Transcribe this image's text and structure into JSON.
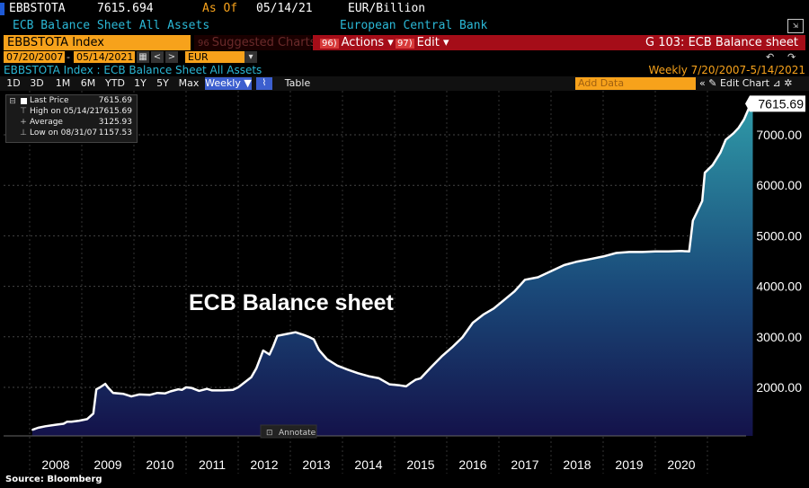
{
  "header": {
    "ticker": "EBBSTOTA",
    "last_value": "7615.694",
    "as_of_label": "As Of",
    "as_of_date": "05/14/21",
    "unit": "EUR/Billion",
    "description": "ECB Balance Sheet All Assets",
    "source_name": "European Central Bank",
    "popout_icon": "popout-icon"
  },
  "toolbar": {
    "security": "EBBSTOTA Index",
    "suggested_charts": "Suggested Charts",
    "suggested_num": "96",
    "actions_num": "96)",
    "actions": "Actions",
    "edit_num": "97)",
    "edit": "Edit",
    "page_title": "G 103: ECB Balance sheet"
  },
  "range": {
    "start": "07/20/2007",
    "end": "05/14/2021",
    "currency": "EUR"
  },
  "subtitle": {
    "left": "EBBSTOTA Index : ECB Balance Sheet All Assets",
    "right": "Weekly  7/20/2007-5/14/2021"
  },
  "periods": [
    "1D",
    "3D",
    "1M",
    "6M",
    "YTD",
    "1Y",
    "5Y",
    "Max"
  ],
  "frequency": "Weekly",
  "table_label": "Table",
  "add_data_placeholder": "Add Data",
  "edit_chart": "Edit Chart",
  "legend": {
    "last_price_label": "Last Price",
    "last_price_value": "7615.69",
    "high_label": "High on 05/14/21",
    "high_value": "7615.69",
    "average_label": "Average",
    "average_value": "3125.93",
    "low_label": "Low on 08/31/07",
    "low_value": "1157.53"
  },
  "annotate_label": "Annotate",
  "source": "Source: Bloomberg",
  "chart_data": {
    "type": "area",
    "title": "ECB Balance sheet",
    "ylim": [
      1100,
      7800
    ],
    "y_ticks": [
      2000,
      3000,
      4000,
      5000,
      6000,
      7000
    ],
    "x_tick_labels": [
      "2008",
      "2009",
      "2010",
      "2011",
      "2012",
      "2013",
      "2014",
      "2015",
      "2016",
      "2017",
      "2018",
      "2019",
      "2020"
    ],
    "last_value_label": "7615.69",
    "x": [
      2007.55,
      2007.66,
      2007.8,
      2008.0,
      2008.15,
      2008.22,
      2008.3,
      2008.45,
      2008.6,
      2008.72,
      2008.78,
      2008.85,
      2008.95,
      2009.0,
      2009.1,
      2009.3,
      2009.45,
      2009.6,
      2009.8,
      2009.95,
      2010.1,
      2010.2,
      2010.35,
      2010.42,
      2010.5,
      2010.6,
      2010.75,
      2010.9,
      2011.0,
      2011.2,
      2011.4,
      2011.5,
      2011.6,
      2011.75,
      2011.85,
      2011.98,
      2012.1,
      2012.17,
      2012.25,
      2012.45,
      2012.6,
      2012.75,
      2012.85,
      2012.95,
      2013.05,
      2013.2,
      2013.4,
      2013.6,
      2013.8,
      2014.0,
      2014.2,
      2014.4,
      2014.6,
      2014.72,
      2014.8,
      2014.9,
      2015.0,
      2015.2,
      2015.4,
      2015.6,
      2015.8,
      2016.0,
      2016.2,
      2016.4,
      2016.6,
      2016.8,
      2017.0,
      2017.15,
      2017.25,
      2017.5,
      2017.75,
      2018.0,
      2018.25,
      2018.5,
      2018.75,
      2019.0,
      2019.25,
      2019.5,
      2019.75,
      2020.0,
      2020.15,
      2020.22,
      2020.3,
      2020.4,
      2020.45,
      2020.6,
      2020.75,
      2020.85,
      2021.0,
      2021.1,
      2021.2,
      2021.3,
      2021.37
    ],
    "y": [
      1157.53,
      1200,
      1230,
      1260,
      1280,
      1320,
      1320,
      1340,
      1370,
      1480,
      1960,
      2000,
      2070,
      2000,
      1890,
      1870,
      1820,
      1860,
      1850,
      1890,
      1880,
      1920,
      1960,
      1950,
      2000,
      1990,
      1930,
      1970,
      1940,
      1940,
      1950,
      2000,
      2080,
      2200,
      2380,
      2730,
      2650,
      2810,
      3020,
      3060,
      3090,
      3040,
      3000,
      2950,
      2740,
      2560,
      2430,
      2350,
      2280,
      2220,
      2180,
      2060,
      2040,
      2020,
      2080,
      2150,
      2180,
      2400,
      2610,
      2790,
      2990,
      3280,
      3440,
      3560,
      3730,
      3900,
      4130,
      4160,
      4180,
      4300,
      4420,
      4490,
      4540,
      4590,
      4660,
      4680,
      4680,
      4690,
      4690,
      4700,
      4690,
      5300,
      5470,
      5690,
      6250,
      6400,
      6650,
      6900,
      7030,
      7140,
      7300,
      7540,
      7615.69
    ]
  }
}
